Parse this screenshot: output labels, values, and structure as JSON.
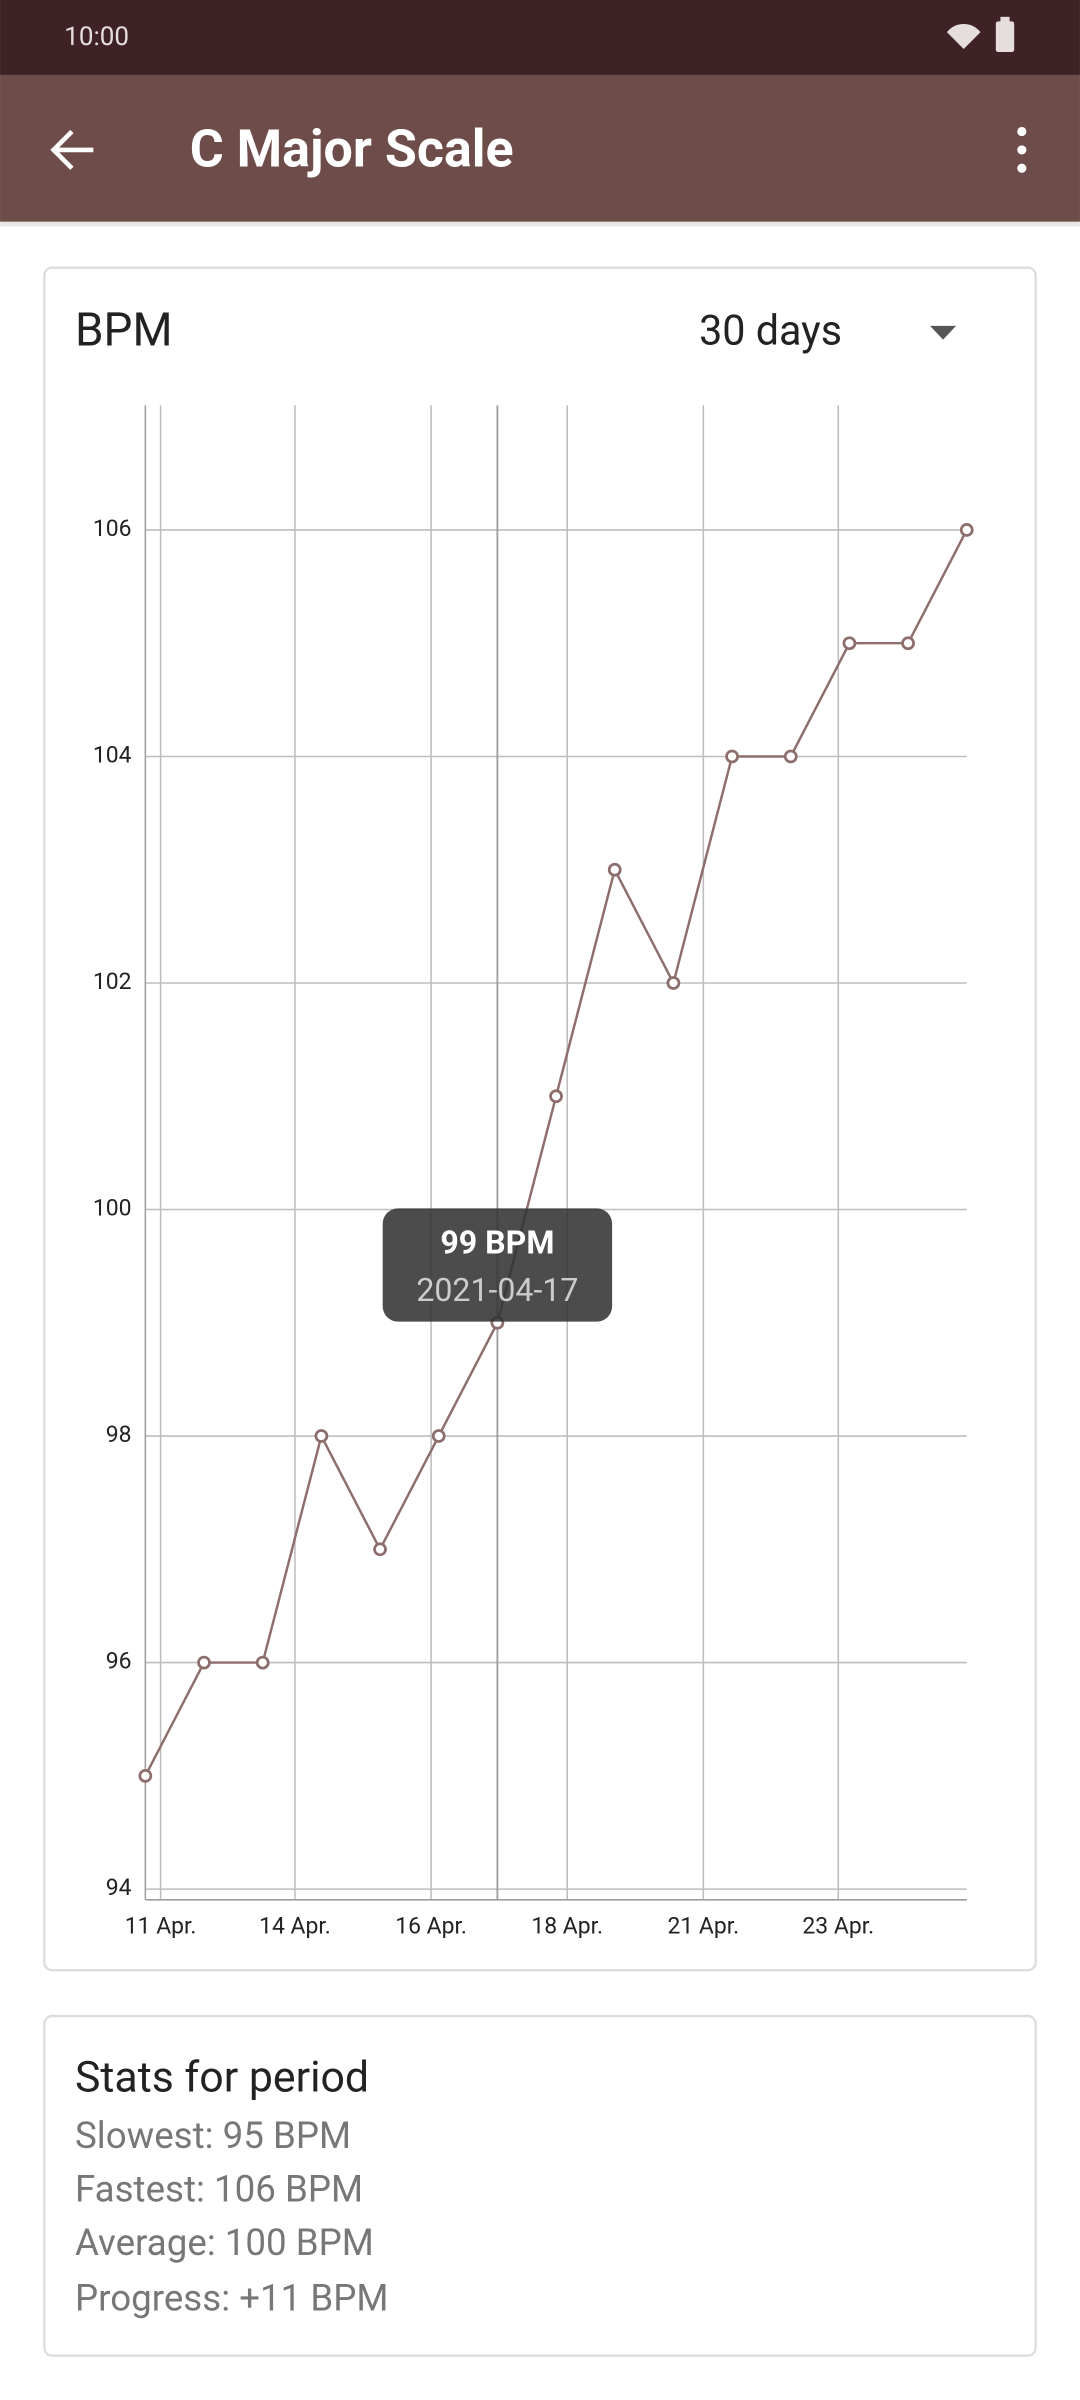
{
  "status_bar": {
    "time": "10:00"
  },
  "app_bar": {
    "title": "C Major Scale"
  },
  "chart_card": {
    "title": "BPM",
    "period": "30 days"
  },
  "chart_data": {
    "type": "line",
    "series": [
      {
        "name": "BPM",
        "color": "#8d6e6c",
        "values": [
          95,
          96,
          96,
          98,
          97,
          98,
          99,
          101,
          103,
          102,
          104,
          104,
          105,
          105,
          106
        ]
      }
    ],
    "xlim": [
      0,
      14
    ],
    "xticks": [
      {
        "value": 0.26,
        "label": "11 Apr."
      },
      {
        "value": 2.55,
        "label": "14 Apr."
      },
      {
        "value": 4.87,
        "label": "16 Apr."
      },
      {
        "value": 7.19,
        "label": "18 Apr."
      },
      {
        "value": 9.51,
        "label": "21 Apr."
      },
      {
        "value": 11.81,
        "label": "23 Apr."
      }
    ],
    "ylim": [
      94,
      107.1
    ],
    "yticks": [
      94,
      96,
      98,
      100,
      102,
      104,
      106
    ],
    "grid": true,
    "tooltip": {
      "title": "99 BPM",
      "subtitle": "2021-04-17"
    }
  },
  "stats": {
    "title": "Stats for period",
    "lines": [
      "Slowest: 95 BPM",
      "Fastest: 106 BPM",
      "Average: 100 BPM",
      "Progress: +11 BPM"
    ]
  }
}
